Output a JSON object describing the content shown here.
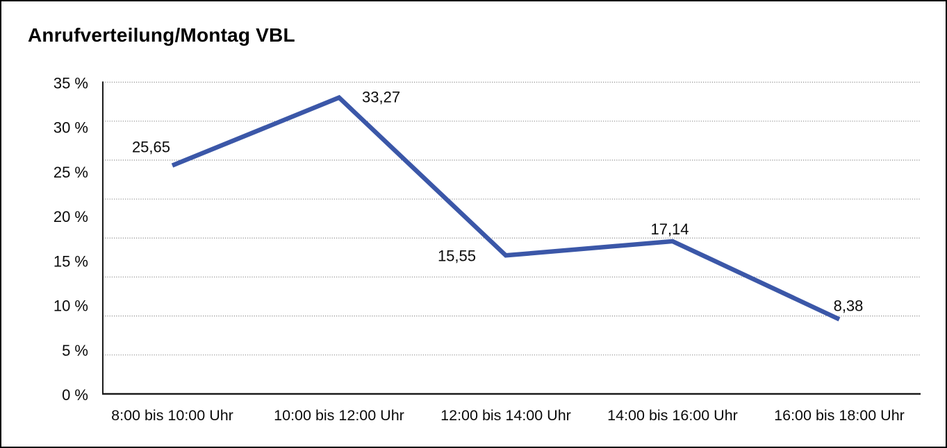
{
  "title": "Anrufverteilung/Montag VBL",
  "chart_data": {
    "type": "line",
    "title": "Anrufverteilung/Montag VBL",
    "categories": [
      "8:00 bis 10:00 Uhr",
      "10:00 bis 12:00 Uhr",
      "12:00 bis 14:00 Uhr",
      "14:00 bis 16:00 Uhr",
      "16:00 bis 18:00 Uhr"
    ],
    "series": [
      {
        "name": "Anrufverteilung Montag VBL",
        "values": [
          25.65,
          33.27,
          15.55,
          17.14,
          8.38
        ],
        "point_labels": [
          "25,65",
          "33,27",
          "15,55",
          "17,14",
          "8,38"
        ]
      }
    ],
    "xlabel": "",
    "ylabel": "",
    "ylim": [
      0,
      35
    ],
    "ytick_step": 5,
    "ytick_labels": [
      "35 %",
      "30 %",
      "25 %",
      "20 %",
      "15 %",
      "10 %",
      "5 %",
      "0 %"
    ],
    "ytick_values": [
      35,
      30,
      25,
      20,
      15,
      10,
      5,
      0
    ],
    "gridline_count": 9,
    "grid": "horizontal-dotted",
    "legend": "none",
    "colors": {
      "line": "#3B57A8",
      "axis": "#1a1a1a",
      "grid": "#8f8f8f",
      "text": "#0a0a0a",
      "background": "#ffffff",
      "border": "#000000"
    }
  }
}
